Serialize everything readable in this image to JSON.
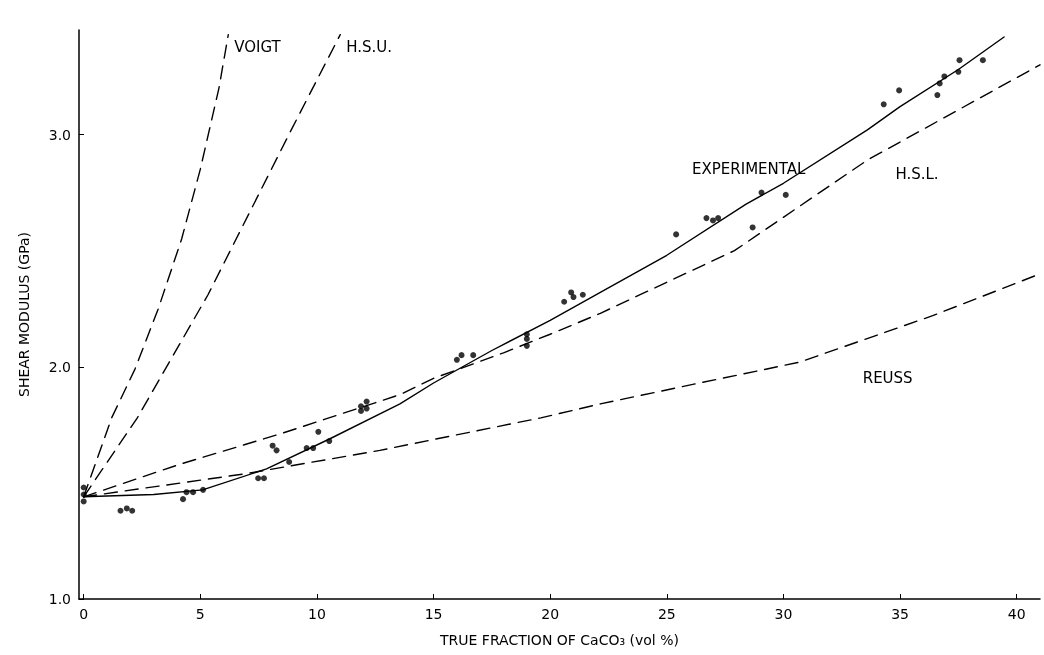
{
  "chart_data": {
    "type": "line",
    "xlabel": "TRUE FRACTION OF CaCO₃ (vol %)",
    "ylabel": "SHEAR MODULUS (GPa)",
    "xlim": [
      -0.2,
      41
    ],
    "xticks": [
      0,
      5,
      10,
      15,
      20,
      25,
      30,
      35,
      40
    ],
    "ylim": [
      1,
      3.45
    ],
    "yticks": [
      {
        "value": 1,
        "label": "1.0"
      },
      {
        "value": 2,
        "label": "2.0"
      },
      {
        "value": 3,
        "label": "3.0"
      }
    ],
    "grid": false,
    "series": [
      {
        "name": "VOIGT",
        "color": "#000000",
        "line_style": "dashed",
        "marker": "none",
        "x": [
          0,
          1.2,
          2.2,
          3.2,
          4.2,
          5.0,
          5.8,
          6.2
        ],
        "values": [
          1.44,
          1.78,
          1.99,
          2.25,
          2.55,
          2.85,
          3.2,
          3.43
        ]
      },
      {
        "name": "H.S.U.",
        "color": "#000000",
        "line_style": "dashed",
        "marker": "none",
        "x": [
          0,
          2.3,
          5.33,
          8.9,
          11.0
        ],
        "values": [
          1.44,
          1.78,
          2.31,
          3.02,
          3.43
        ]
      },
      {
        "name": "EXPERIMENTAL",
        "color": "#000000",
        "line_style": "solid",
        "marker": "none",
        "x": [
          0,
          3,
          5.1,
          7.84,
          10.56,
          13.56,
          15,
          17.5,
          20,
          22.15,
          25,
          28.4,
          30,
          33.6,
          35,
          37.5,
          39.46
        ],
        "values": [
          1.44,
          1.45,
          1.47,
          1.56,
          1.69,
          1.84,
          1.93,
          2.07,
          2.2,
          2.32,
          2.48,
          2.7,
          2.79,
          3.02,
          3.12,
          3.28,
          3.42
        ]
      },
      {
        "name": "H.S.L.",
        "color": "#000000",
        "line_style": "dashed",
        "marker": "none",
        "x": [
          0,
          4.12,
          8.4,
          13.56,
          15,
          18,
          20,
          22.15,
          27.9,
          33.6,
          41.0
        ],
        "values": [
          1.44,
          1.58,
          1.71,
          1.88,
          1.95,
          2.06,
          2.14,
          2.23,
          2.5,
          2.89,
          3.3
        ]
      },
      {
        "name": "REUSS",
        "color": "#000000",
        "line_style": "dashed",
        "marker": "none",
        "x": [
          0,
          6.98,
          12.7,
          19.6,
          22.15,
          26.4,
          30.7,
          36.4,
          41.0
        ],
        "values": [
          1.44,
          1.54,
          1.64,
          1.78,
          1.84,
          1.93,
          2.02,
          2.22,
          2.4
        ]
      },
      {
        "type": "scatter",
        "color": "#000000",
        "marker": "circle",
        "x": [
          0,
          0,
          0,
          1.58,
          1.85,
          2.08,
          4.26,
          4.41,
          4.69,
          5.12,
          7.48,
          7.73,
          8.1,
          8.27,
          8.81,
          9.56,
          9.84,
          10.06,
          10.53,
          11.89,
          12.13,
          11.89,
          12.13,
          16.0,
          16.2,
          16.7,
          19.0,
          19.0,
          19.0,
          20.6,
          20.9,
          21.0,
          21.4,
          25.4,
          26.7,
          26.98,
          27.2,
          28.68,
          29.06,
          30.1,
          34.3,
          34.96,
          36.6,
          36.7,
          36.9,
          37.5,
          37.55,
          38.55
        ],
        "values": [
          1.42,
          1.45,
          1.48,
          1.38,
          1.39,
          1.38,
          1.43,
          1.46,
          1.46,
          1.47,
          1.52,
          1.52,
          1.66,
          1.64,
          1.59,
          1.65,
          1.65,
          1.72,
          1.68,
          1.83,
          1.85,
          1.81,
          1.82,
          2.03,
          2.05,
          2.05,
          2.09,
          2.12,
          2.14,
          2.28,
          2.32,
          2.3,
          2.31,
          2.57,
          2.64,
          2.63,
          2.64,
          2.6,
          2.75,
          2.74,
          3.13,
          3.19,
          3.17,
          3.22,
          3.25,
          3.27,
          3.32,
          3.32
        ]
      }
    ]
  }
}
